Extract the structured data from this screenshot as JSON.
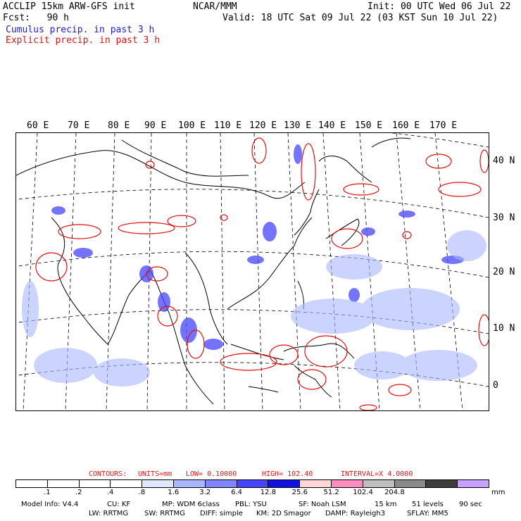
{
  "header": {
    "model": "ACCLIP 15km ARW-GFS init",
    "org": "NCAR/MMM",
    "init": "Init: 00 UTC Wed 06 Jul 22",
    "fcst": "Fcst:   90 h",
    "valid": "Valid: 18 UTC Sat 09 Jul 22 (03 KST Sun 10 Jul 22)",
    "cumulus_label": "Cumulus precip. in past 3 h",
    "explicit_label": "Explicit precip. in past 3 h"
  },
  "map": {
    "lon_labels": [
      "60 E",
      "70 E",
      "80 E",
      "90 E",
      "100 E",
      "110 E",
      "120 E",
      "130 E",
      "140 E",
      "150 E",
      "160 E",
      "170 E"
    ],
    "lat_labels": [
      "40 N",
      "30 N",
      "20 N",
      "10 N",
      "0"
    ]
  },
  "contours": {
    "label": "CONTOURS:",
    "units": "UNITS=mm",
    "low": "LOW= 0.10000",
    "high": "HIGH=  102.40",
    "interval": "INTERVAL=X  4.0000"
  },
  "colorbar": {
    "colors": [
      "#ffffff",
      "#ffffff",
      "#ffffff",
      "#ffffff",
      "#dfe8ff",
      "#aab6ff",
      "#7f86ff",
      "#4545ff",
      "#1010e0",
      "#ffd7d7",
      "#ff8cc0",
      "#bfbfbf",
      "#8a8a8a",
      "#3c3c3c",
      "#c8a0ff"
    ],
    "ticks": [
      ".1",
      ".2",
      ".4",
      ".8",
      "1.6",
      "3.2",
      "6.4",
      "12.8",
      "25.6",
      "51.2",
      "102.4",
      "204.8"
    ],
    "units": "mm"
  },
  "footer": {
    "line1": [
      "Model Info: V4.4",
      "CU: KF",
      "MP: WDM 6class",
      "PBL: YSU",
      "SF: Noah LSM",
      "15 km",
      "51 levels",
      "90 sec"
    ],
    "line2": [
      "LW: RRTMG",
      "SW: RRTMG",
      "DIFF: simple",
      "KM: 2D Smagor",
      "DAMP: Rayleigh3",
      "SFLAY: MM5"
    ]
  },
  "colors": {
    "cumulus": "#2020c8",
    "explicit": "#e01010",
    "coastline": "#000000"
  }
}
